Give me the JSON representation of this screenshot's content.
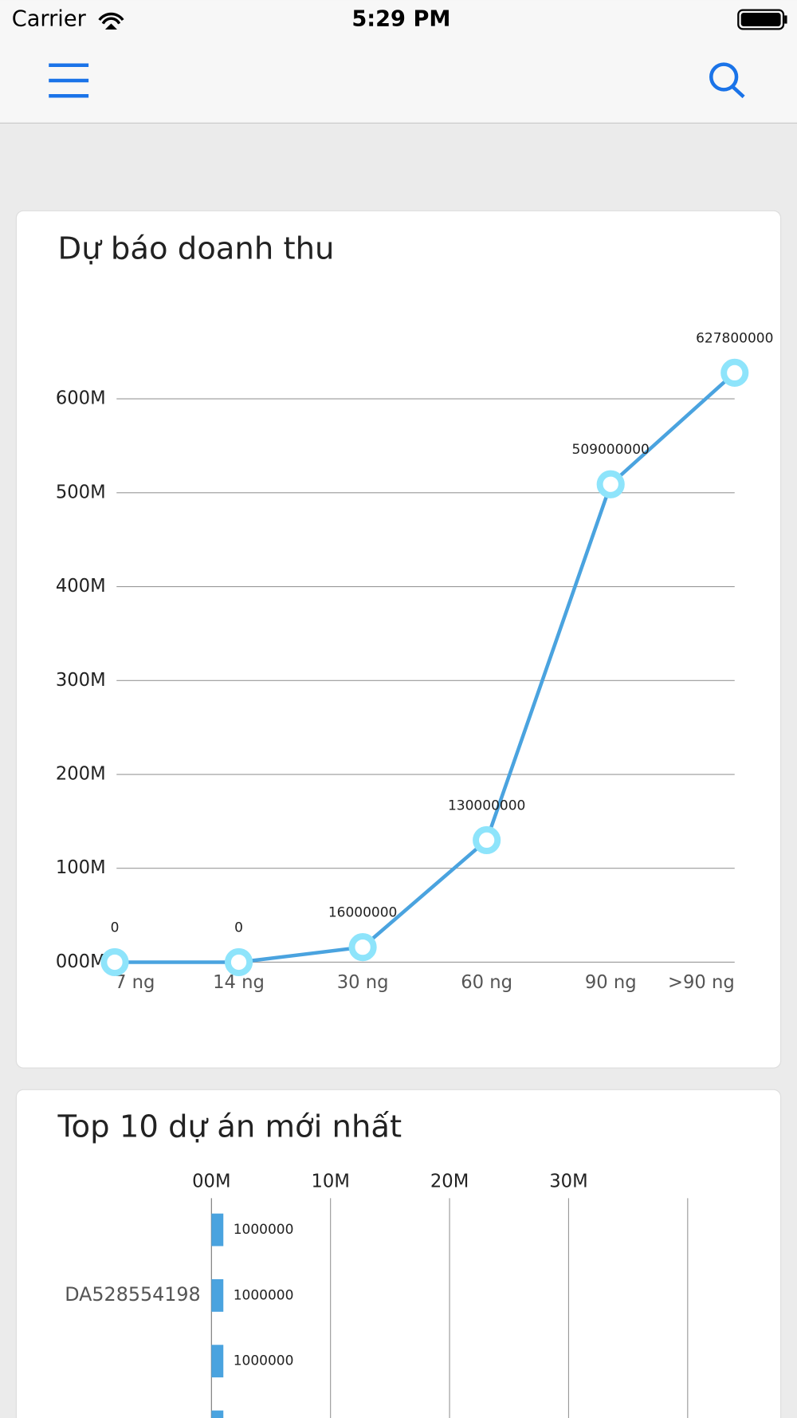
{
  "status_bar": {
    "carrier": "Carrier",
    "time": "5:29 PM"
  },
  "chart_data": [
    {
      "type": "line",
      "title": "Dự báo doanh thu",
      "categories": [
        "7 ng",
        "14 ng",
        "30 ng",
        "60 ng",
        "90 ng",
        ">90 ng"
      ],
      "values": [
        0,
        0,
        16000000,
        130000000,
        509000000,
        627800000
      ],
      "color": "#4aa3df",
      "marker_color": "#8ee4fb",
      "ylim": [
        0,
        600000000
      ],
      "yticks": [
        {
          "value": 0,
          "label": "000M"
        },
        {
          "value": 100000000,
          "label": "100M"
        },
        {
          "value": 200000000,
          "label": "200M"
        },
        {
          "value": 300000000,
          "label": "300M"
        },
        {
          "value": 400000000,
          "label": "400M"
        },
        {
          "value": 500000000,
          "label": "500M"
        },
        {
          "value": 600000000,
          "label": "600M"
        }
      ],
      "grid": true
    },
    {
      "type": "hbar",
      "title": "Top 10 dự án mới nhất",
      "categories": [
        null,
        "DA528554198",
        null,
        null
      ],
      "values": [
        1000000,
        1000000,
        1000000,
        1000000
      ],
      "color": "#4aa3df",
      "xlim": [
        0,
        40000000
      ],
      "xticks": [
        {
          "value": 0,
          "label": "00M"
        },
        {
          "value": 10000000,
          "label": "10M"
        },
        {
          "value": 20000000,
          "label": "20M"
        },
        {
          "value": 30000000,
          "label": "30M"
        }
      ],
      "grid": true
    }
  ]
}
